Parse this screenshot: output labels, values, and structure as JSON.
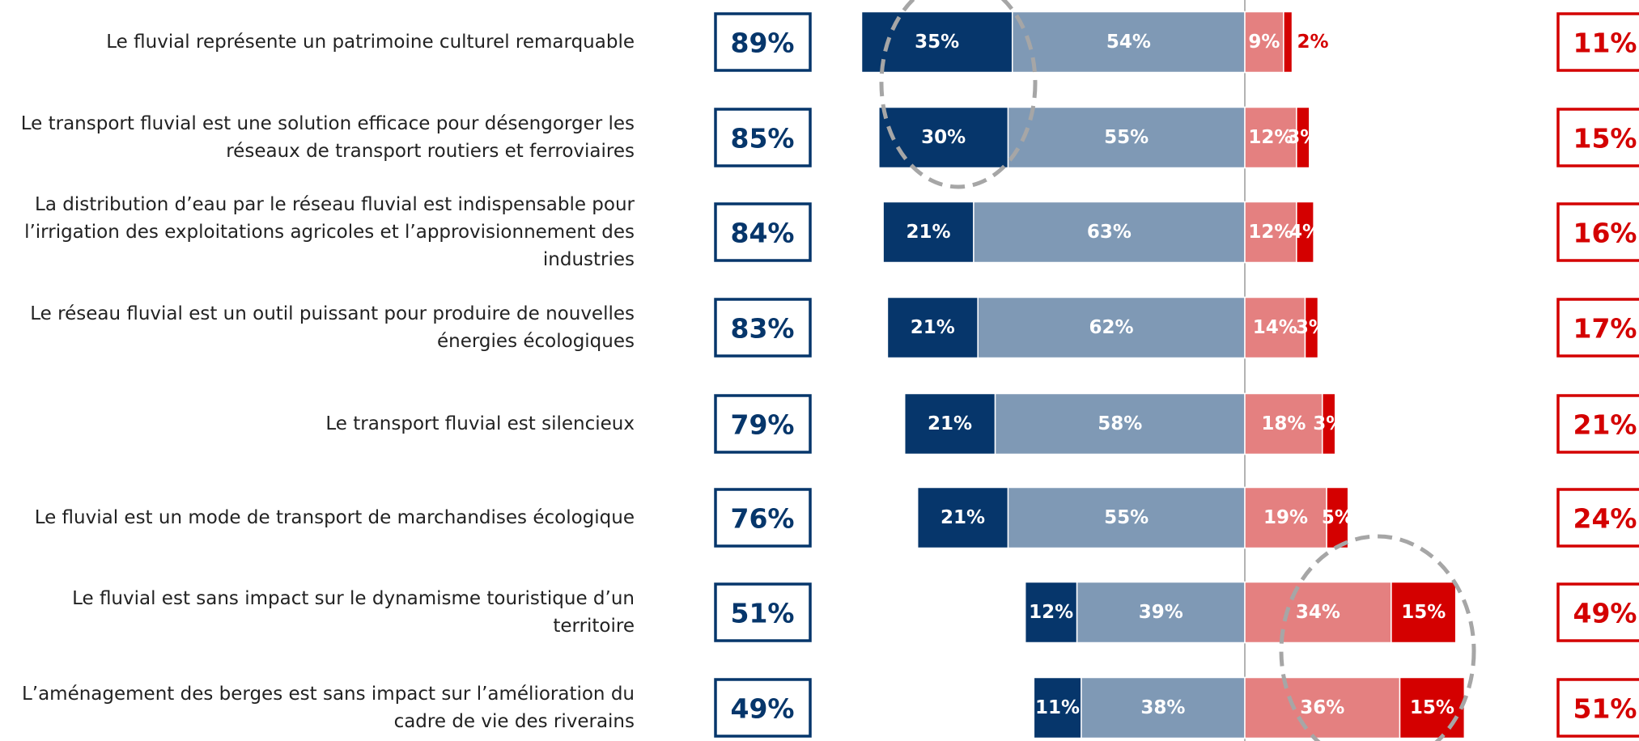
{
  "chart_data": {
    "type": "diverging_bar",
    "categories": [
      "Le fluvial représente un patrimoine culturel remarquable",
      "Le transport fluvial est une solution efficace pour désengorger les réseaux de transport routiers et ferroviaires",
      "La distribution d’eau par le réseau fluvial est indispensable pour l’irrigation des exploitations agricoles et l’approvisionnement des industries",
      "Le réseau fluvial est un outil puissant pour produire de nouvelles énergies écologiques",
      "Le transport fluvial est silencieux",
      "Le fluvial est un mode de transport de marchandises écologique",
      "Le fluvial est sans impact sur le dynamisme touristique d’un territoire",
      "L’aménagement des berges est sans impact sur l’amélioration du cadre de vie des riverains"
    ],
    "series": [
      {
        "color": "#06366b",
        "side": "left",
        "values": [
          35,
          30,
          21,
          21,
          21,
          21,
          12,
          11
        ],
        "value_labels": [
          "35%",
          "30%",
          "21%",
          "21%",
          "21%",
          "21%",
          "12%",
          "11%"
        ]
      },
      {
        "color": "#7f99b5",
        "side": "left",
        "values": [
          54,
          55,
          63,
          62,
          58,
          55,
          39,
          38
        ],
        "value_labels": [
          "54%",
          "55%",
          "63%",
          "62%",
          "58%",
          "55%",
          "39%",
          "38%"
        ]
      },
      {
        "color": "#e48080",
        "side": "right",
        "values": [
          9,
          12,
          12,
          14,
          18,
          19,
          34,
          36
        ],
        "value_labels": [
          "9%",
          "12%",
          "12%",
          "14%",
          "18%",
          "19%",
          "34%",
          "36%"
        ]
      },
      {
        "color": "#d40000",
        "side": "right",
        "values": [
          2,
          3,
          4,
          3,
          3,
          5,
          15,
          15
        ],
        "value_labels": [
          "2%",
          "3%",
          "4%",
          "3%",
          "3%",
          "5%",
          "15%",
          "15%"
        ]
      }
    ],
    "agree_total": {
      "color": "#06366b",
      "values": [
        89,
        85,
        84,
        83,
        79,
        76,
        51,
        49
      ],
      "value_labels": [
        "89%",
        "85%",
        "84%",
        "83%",
        "79%",
        "76%",
        "51%",
        "49%"
      ]
    },
    "disagree_total": {
      "color": "#d40000",
      "values": [
        11,
        15,
        16,
        17,
        21,
        24,
        49,
        51
      ],
      "value_labels": [
        "11%",
        "15%",
        "16%",
        "17%",
        "21%",
        "24%",
        "49%",
        "51%"
      ]
    }
  }
}
